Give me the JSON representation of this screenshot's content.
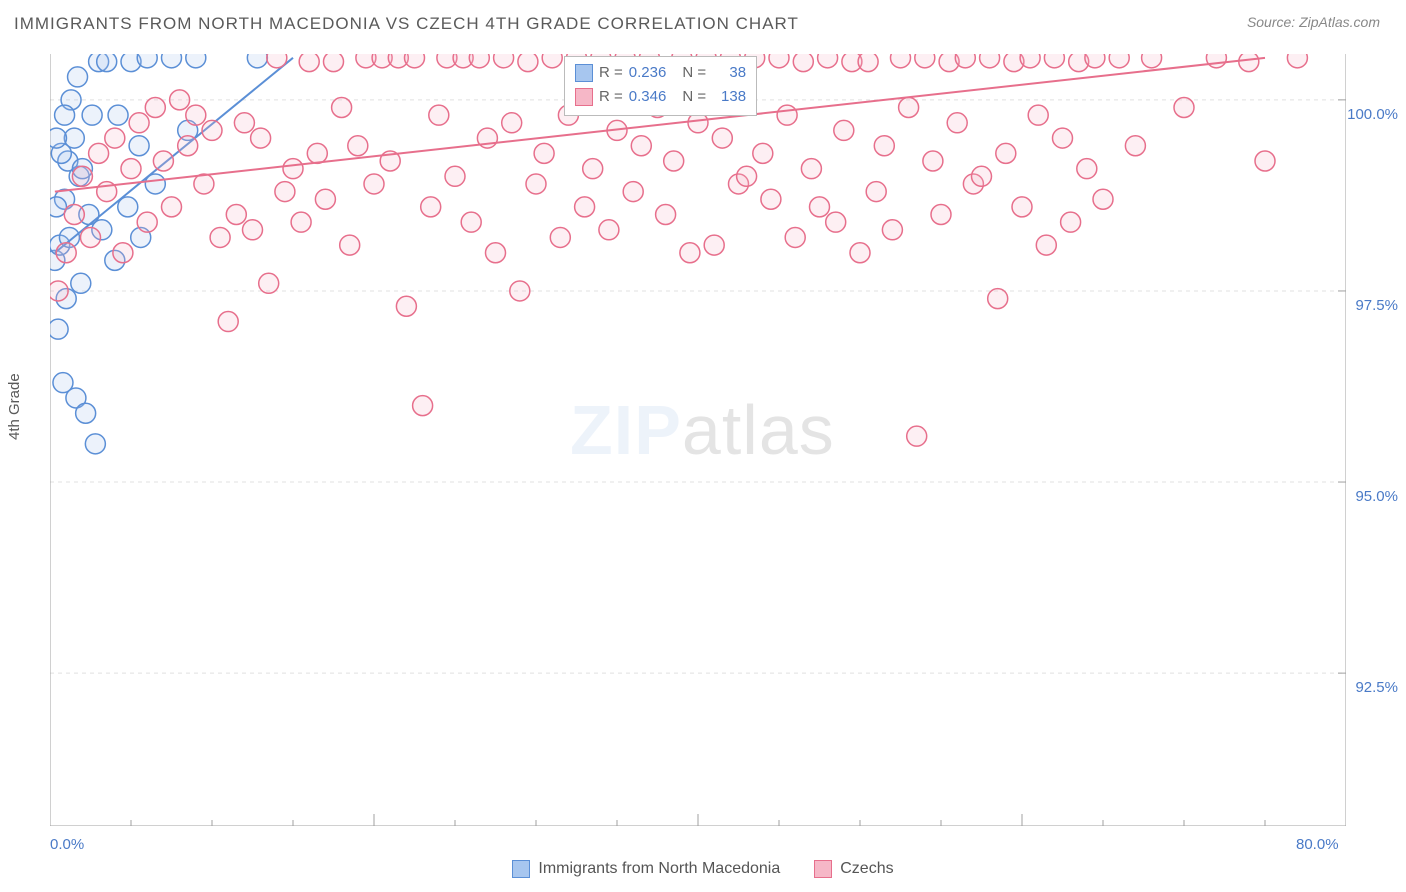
{
  "title": "IMMIGRANTS FROM NORTH MACEDONIA VS CZECH 4TH GRADE CORRELATION CHART",
  "source": "Source: ZipAtlas.com",
  "ylabel": "4th Grade",
  "watermark_part1": "ZIP",
  "watermark_part2": "atlas",
  "chart": {
    "type": "scatter",
    "xlim": [
      0,
      80
    ],
    "ylim": [
      90.5,
      100.6
    ],
    "x_ticks": [
      0,
      20,
      40,
      60,
      80
    ],
    "x_tick_labels": [
      "0.0%",
      "",
      "",
      "",
      "80.0%"
    ],
    "y_ticks": [
      92.5,
      95.0,
      97.5,
      100.0
    ],
    "y_tick_labels": [
      "92.5%",
      "95.0%",
      "97.5%",
      "100.0%"
    ],
    "x_minor_ticks": [
      5,
      10,
      15,
      25,
      30,
      35,
      45,
      50,
      55,
      65,
      70,
      75
    ],
    "background": "#ffffff",
    "grid_color": "#e0e0e0",
    "axis_color": "#a0a0a0",
    "marker_radius": 10,
    "marker_stroke_width": 1.5,
    "marker_fill_opacity": 0.22,
    "line_width": 2
  },
  "series": [
    {
      "name": "Immigrants from North Macedonia",
      "color_stroke": "#5b8fd6",
      "color_fill": "#a7c6ef",
      "R": "0.236",
      "N": "38",
      "trend": {
        "x1": 0.3,
        "y1": 98.0,
        "x2": 15.0,
        "y2": 100.55
      },
      "points": [
        [
          0.3,
          97.9
        ],
        [
          0.6,
          98.1
        ],
        [
          0.9,
          98.7
        ],
        [
          1.1,
          99.2
        ],
        [
          1.5,
          99.5
        ],
        [
          1.8,
          99.0
        ],
        [
          2.0,
          99.1
        ],
        [
          2.4,
          98.5
        ],
        [
          0.4,
          98.6
        ],
        [
          0.7,
          99.3
        ],
        [
          1.2,
          98.2
        ],
        [
          1.0,
          97.4
        ],
        [
          0.8,
          96.3
        ],
        [
          1.6,
          96.1
        ],
        [
          2.2,
          95.9
        ],
        [
          2.8,
          95.5
        ],
        [
          0.5,
          97.0
        ],
        [
          3.0,
          100.5
        ],
        [
          3.5,
          100.5
        ],
        [
          4.2,
          99.8
        ],
        [
          5.0,
          100.5
        ],
        [
          5.5,
          99.4
        ],
        [
          6.0,
          100.55
        ],
        [
          6.5,
          98.9
        ],
        [
          7.5,
          100.55
        ],
        [
          8.5,
          99.6
        ],
        [
          9.0,
          100.55
        ],
        [
          2.6,
          99.8
        ],
        [
          1.3,
          100.0
        ],
        [
          1.7,
          100.3
        ],
        [
          0.9,
          99.8
        ],
        [
          0.4,
          99.5
        ],
        [
          3.2,
          98.3
        ],
        [
          4.0,
          97.9
        ],
        [
          4.8,
          98.6
        ],
        [
          5.6,
          98.2
        ],
        [
          12.8,
          100.55
        ],
        [
          1.9,
          97.6
        ]
      ]
    },
    {
      "name": "Czechs",
      "color_stroke": "#e76f8c",
      "color_fill": "#f6b7c7",
      "R": "0.346",
      "N": "138",
      "trend": {
        "x1": 0.3,
        "y1": 98.8,
        "x2": 75.0,
        "y2": 100.55
      },
      "points": [
        [
          0.5,
          97.5
        ],
        [
          1.0,
          98.0
        ],
        [
          1.5,
          98.5
        ],
        [
          2.0,
          99.0
        ],
        [
          2.5,
          98.2
        ],
        [
          3.0,
          99.3
        ],
        [
          3.5,
          98.8
        ],
        [
          4.0,
          99.5
        ],
        [
          4.5,
          98.0
        ],
        [
          5.0,
          99.1
        ],
        [
          5.5,
          99.7
        ],
        [
          6.0,
          98.4
        ],
        [
          6.5,
          99.9
        ],
        [
          7.0,
          99.2
        ],
        [
          7.5,
          98.6
        ],
        [
          8.0,
          100.0
        ],
        [
          8.5,
          99.4
        ],
        [
          9.0,
          99.8
        ],
        [
          9.5,
          98.9
        ],
        [
          10.0,
          99.6
        ],
        [
          10.5,
          98.2
        ],
        [
          11.0,
          97.1
        ],
        [
          11.5,
          98.5
        ],
        [
          12.0,
          99.7
        ],
        [
          12.5,
          98.3
        ],
        [
          13.0,
          99.5
        ],
        [
          13.5,
          97.6
        ],
        [
          14.0,
          100.55
        ],
        [
          14.5,
          98.8
        ],
        [
          15.0,
          99.1
        ],
        [
          15.5,
          98.4
        ],
        [
          16.0,
          100.5
        ],
        [
          16.5,
          99.3
        ],
        [
          17.0,
          98.7
        ],
        [
          17.5,
          100.5
        ],
        [
          18.0,
          99.9
        ],
        [
          18.5,
          98.1
        ],
        [
          19.0,
          99.4
        ],
        [
          19.5,
          100.55
        ],
        [
          20.0,
          98.9
        ],
        [
          20.5,
          100.55
        ],
        [
          21.0,
          99.2
        ],
        [
          21.5,
          100.55
        ],
        [
          22.0,
          97.3
        ],
        [
          22.5,
          100.55
        ],
        [
          23.0,
          96.0
        ],
        [
          23.5,
          98.6
        ],
        [
          24.0,
          99.8
        ],
        [
          24.5,
          100.55
        ],
        [
          25.0,
          99.0
        ],
        [
          25.5,
          100.55
        ],
        [
          26.0,
          98.4
        ],
        [
          26.5,
          100.55
        ],
        [
          27.0,
          99.5
        ],
        [
          27.5,
          98.0
        ],
        [
          28.0,
          100.55
        ],
        [
          28.5,
          99.7
        ],
        [
          29.0,
          97.5
        ],
        [
          29.5,
          100.5
        ],
        [
          30.0,
          98.9
        ],
        [
          30.5,
          99.3
        ],
        [
          31.0,
          100.55
        ],
        [
          31.5,
          98.2
        ],
        [
          32.0,
          99.8
        ],
        [
          32.5,
          100.55
        ],
        [
          33.0,
          98.6
        ],
        [
          33.5,
          99.1
        ],
        [
          34.0,
          100.55
        ],
        [
          34.5,
          98.3
        ],
        [
          35.0,
          99.6
        ],
        [
          35.5,
          100.55
        ],
        [
          36.0,
          98.8
        ],
        [
          36.5,
          99.4
        ],
        [
          37.0,
          100.55
        ],
        [
          37.5,
          99.9
        ],
        [
          38.0,
          98.5
        ],
        [
          38.5,
          99.2
        ],
        [
          39.0,
          100.55
        ],
        [
          39.5,
          98.0
        ],
        [
          40.0,
          99.7
        ],
        [
          40.5,
          100.55
        ],
        [
          41.0,
          98.1
        ],
        [
          41.5,
          99.5
        ],
        [
          42.0,
          100.55
        ],
        [
          42.5,
          98.9
        ],
        [
          43.0,
          99.0
        ],
        [
          43.5,
          100.55
        ],
        [
          44.0,
          99.3
        ],
        [
          44.5,
          98.7
        ],
        [
          45.0,
          100.55
        ],
        [
          45.5,
          99.8
        ],
        [
          46.0,
          98.2
        ],
        [
          46.5,
          100.5
        ],
        [
          47.0,
          99.1
        ],
        [
          47.5,
          98.6
        ],
        [
          48.0,
          100.55
        ],
        [
          48.5,
          98.4
        ],
        [
          49.0,
          99.6
        ],
        [
          49.5,
          100.5
        ],
        [
          50.0,
          98.0
        ],
        [
          50.5,
          100.5
        ],
        [
          51.0,
          98.8
        ],
        [
          51.5,
          99.4
        ],
        [
          52.0,
          98.3
        ],
        [
          52.5,
          100.55
        ],
        [
          53.0,
          99.9
        ],
        [
          53.5,
          95.6
        ],
        [
          54.0,
          100.55
        ],
        [
          54.5,
          99.2
        ],
        [
          55.0,
          98.5
        ],
        [
          55.5,
          100.5
        ],
        [
          56.0,
          99.7
        ],
        [
          56.5,
          100.55
        ],
        [
          57.0,
          98.9
        ],
        [
          57.5,
          99.0
        ],
        [
          58.0,
          100.55
        ],
        [
          58.5,
          97.4
        ],
        [
          59.0,
          99.3
        ],
        [
          59.5,
          100.5
        ],
        [
          60.0,
          98.6
        ],
        [
          60.5,
          100.55
        ],
        [
          61.0,
          99.8
        ],
        [
          61.5,
          98.1
        ],
        [
          62.0,
          100.55
        ],
        [
          62.5,
          99.5
        ],
        [
          63.0,
          98.4
        ],
        [
          63.5,
          100.5
        ],
        [
          64.0,
          99.1
        ],
        [
          64.5,
          100.55
        ],
        [
          65.0,
          98.7
        ],
        [
          66.0,
          100.55
        ],
        [
          67.0,
          99.4
        ],
        [
          68.0,
          100.55
        ],
        [
          70.0,
          99.9
        ],
        [
          72.0,
          100.55
        ],
        [
          74.0,
          100.5
        ],
        [
          75.0,
          99.2
        ],
        [
          77.0,
          100.55
        ]
      ]
    }
  ],
  "legend_labels": {
    "r_label": "R =",
    "n_label": "N ="
  }
}
